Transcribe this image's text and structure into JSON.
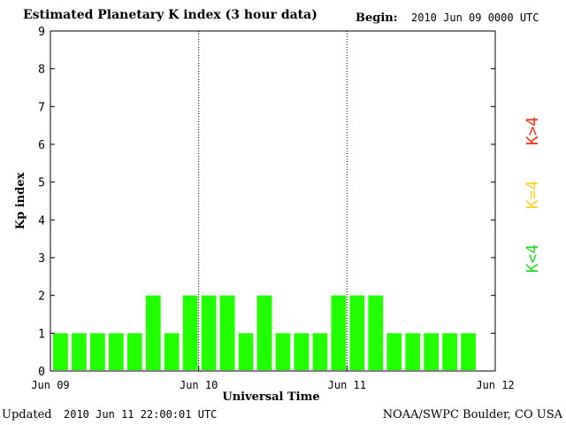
{
  "header": {
    "title": "Estimated Planetary K index (3 hour data)",
    "begin_label": "Begin:",
    "begin_value": "2010 Jun 09 0000 UTC"
  },
  "footer": {
    "updated_label": "Updated",
    "updated_value": "2010 Jun 11 22:00:01 UTC",
    "credit": "NOAA/SWPC Boulder, CO USA"
  },
  "legend": {
    "items": [
      {
        "label": "K<4",
        "color": "#22e022"
      },
      {
        "label": "K=4",
        "color": "#ffd21a"
      },
      {
        "label": "K>4",
        "color": "#ff2a10"
      }
    ]
  },
  "chart_data": {
    "type": "bar",
    "xlabel": "Universal Time",
    "ylabel": "Kp index",
    "ylim": [
      0,
      9
    ],
    "yticks": [
      0,
      1,
      2,
      3,
      4,
      5,
      6,
      7,
      8,
      9
    ],
    "xticks": [
      "Jun 09",
      "Jun 10",
      "Jun 11",
      "Jun 12"
    ],
    "x_range": [
      "2010-06-09 00:00",
      "2010-06-12 00:00"
    ],
    "interval_hours": 3,
    "day_separators": [
      "Jun 10",
      "Jun 11"
    ],
    "values": [
      1,
      1,
      1,
      1,
      1,
      2,
      1,
      2,
      2,
      2,
      1,
      2,
      1,
      1,
      1,
      2,
      2,
      2,
      1,
      1,
      1,
      1,
      1
    ],
    "bar_color": "#22ff00"
  }
}
